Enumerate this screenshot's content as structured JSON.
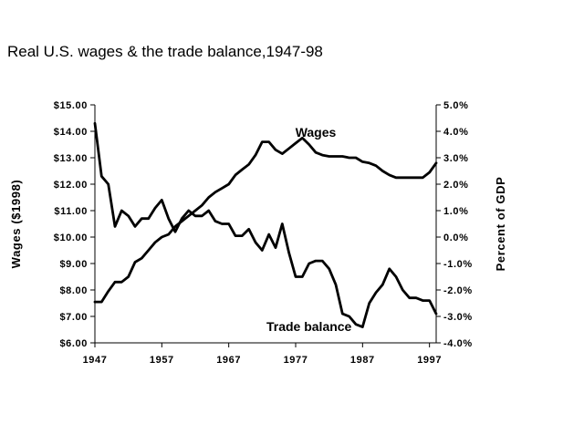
{
  "chart_data": {
    "type": "line",
    "title": "Real U.S. wages & the trade balance,1947-98",
    "xlabel": "",
    "ylabel_left": "Wages ($1998)",
    "ylabel_right": "Percent of GDP",
    "xlim": [
      1947,
      1998
    ],
    "ylim_left": [
      6.0,
      15.0
    ],
    "ylim_right": [
      -4.0,
      5.0
    ],
    "x_ticks": [
      "1947",
      "1957",
      "1967",
      "1977",
      "1987",
      "1997"
    ],
    "y_left_ticks": [
      "$6.00",
      "$7.00",
      "$8.00",
      "$9.00",
      "$10.00",
      "$11.00",
      "$12.00",
      "$13.00",
      "$14.00",
      "$15.00"
    ],
    "y_right_ticks": [
      "-4.0%",
      "-3.0%",
      "-2.0%",
      "-1.0%",
      "0.0%",
      "1.0%",
      "2.0%",
      "3.0%",
      "4.0%",
      "5.0%"
    ],
    "grid": false,
    "legend": "none",
    "series": [
      {
        "name": "Wages",
        "axis": "left",
        "x": [
          1947,
          1948,
          1949,
          1950,
          1951,
          1952,
          1953,
          1954,
          1955,
          1956,
          1957,
          1958,
          1959,
          1960,
          1961,
          1962,
          1963,
          1964,
          1965,
          1966,
          1967,
          1968,
          1969,
          1970,
          1971,
          1972,
          1973,
          1974,
          1975,
          1976,
          1977,
          1978,
          1979,
          1980,
          1981,
          1982,
          1983,
          1984,
          1985,
          1986,
          1987,
          1988,
          1989,
          1990,
          1991,
          1992,
          1993,
          1994,
          1995,
          1996,
          1997,
          1998
        ],
        "values": [
          7.55,
          7.55,
          7.95,
          8.3,
          8.3,
          8.5,
          9.05,
          9.2,
          9.5,
          9.8,
          10.0,
          10.1,
          10.4,
          10.6,
          10.8,
          11.0,
          11.2,
          11.5,
          11.7,
          11.85,
          12.0,
          12.35,
          12.55,
          12.75,
          13.1,
          13.6,
          13.6,
          13.3,
          13.15,
          13.35,
          13.55,
          13.75,
          13.5,
          13.2,
          13.1,
          13.05,
          13.05,
          13.05,
          13.0,
          13.0,
          12.85,
          12.8,
          12.7,
          12.5,
          12.35,
          12.25,
          12.25,
          12.25,
          12.25,
          12.25,
          12.45,
          12.8
        ]
      },
      {
        "name": "Trade balance",
        "axis": "right",
        "x": [
          1947,
          1948,
          1949,
          1950,
          1951,
          1952,
          1953,
          1954,
          1955,
          1956,
          1957,
          1958,
          1959,
          1960,
          1961,
          1962,
          1963,
          1964,
          1965,
          1966,
          1967,
          1968,
          1969,
          1970,
          1971,
          1972,
          1973,
          1974,
          1975,
          1976,
          1977,
          1978,
          1979,
          1980,
          1981,
          1982,
          1983,
          1984,
          1985,
          1986,
          1987,
          1988,
          1989,
          1990,
          1991,
          1992,
          1993,
          1994,
          1995,
          1996,
          1997,
          1998
        ],
        "values": [
          4.3,
          2.3,
          2.0,
          0.4,
          1.0,
          0.8,
          0.4,
          0.7,
          0.7,
          1.1,
          1.4,
          0.7,
          0.2,
          0.7,
          1.0,
          0.8,
          0.8,
          1.0,
          0.6,
          0.5,
          0.5,
          0.05,
          0.05,
          0.3,
          -0.2,
          -0.5,
          0.1,
          -0.4,
          0.5,
          -0.6,
          -1.5,
          -1.5,
          -1.0,
          -0.9,
          -0.9,
          -1.2,
          -1.8,
          -2.9,
          -3.0,
          -3.3,
          -3.4,
          -2.5,
          -2.1,
          -1.8,
          -1.2,
          -1.5,
          -2.0,
          -2.3,
          -2.3,
          -2.4,
          -2.4,
          -2.9
        ]
      }
    ],
    "annotations": [
      {
        "text": "Wages",
        "x": 1980,
        "y_left": 13.8
      },
      {
        "text": "Trade balance",
        "x": 1979,
        "y_left": 6.45
      }
    ]
  }
}
